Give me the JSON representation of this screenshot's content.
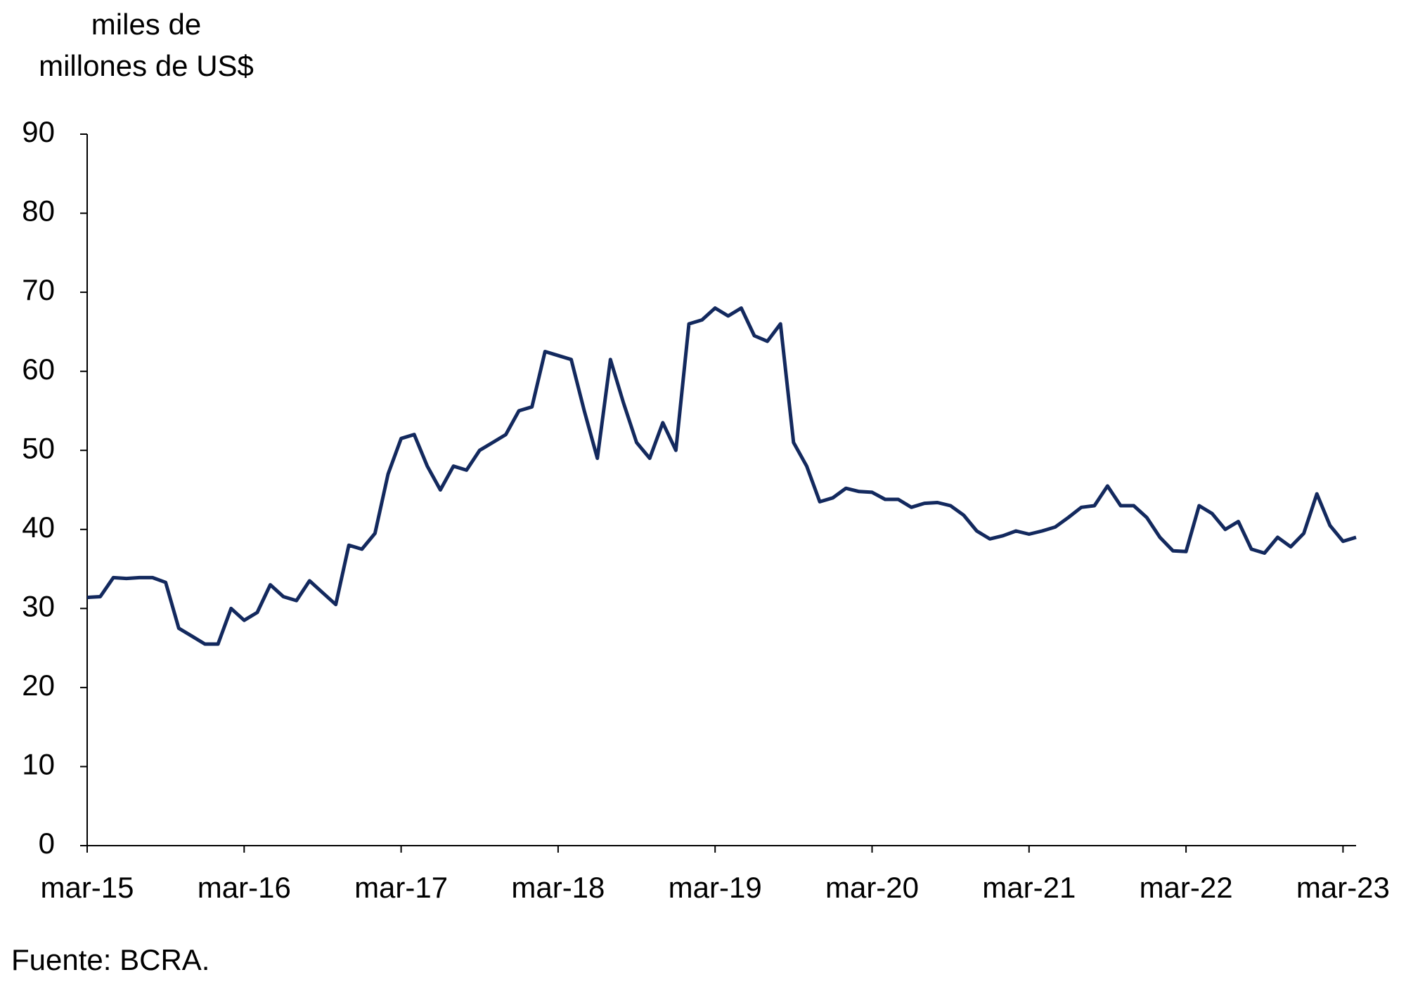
{
  "chart_data": {
    "type": "line",
    "ylabel": [
      "miles de",
      "millones de US$"
    ],
    "source": "Fuente: BCRA.",
    "categories": [
      "mar-15",
      null,
      null,
      null,
      null,
      null,
      null,
      null,
      null,
      null,
      null,
      null,
      "mar-16",
      null,
      null,
      null,
      null,
      null,
      null,
      null,
      null,
      null,
      null,
      null,
      "mar-17",
      null,
      null,
      null,
      null,
      null,
      null,
      null,
      null,
      null,
      null,
      null,
      "mar-18",
      null,
      null,
      null,
      null,
      null,
      null,
      null,
      null,
      null,
      null,
      null,
      "mar-19",
      null,
      null,
      null,
      null,
      null,
      null,
      null,
      null,
      null,
      null,
      null,
      "mar-20",
      null,
      null,
      null,
      null,
      null,
      null,
      null,
      null,
      null,
      null,
      null,
      "mar-21",
      null,
      null,
      null,
      null,
      null,
      null,
      null,
      null,
      null,
      null,
      null,
      "mar-22",
      null,
      null,
      null,
      null,
      null,
      null,
      null,
      null,
      null,
      null,
      null,
      "mar-23",
      null
    ],
    "series": [
      {
        "color": "#13295e",
        "values": [
          31.4,
          31.5,
          33.9,
          33.8,
          33.9,
          33.9,
          33.3,
          27.5,
          26.5,
          25.5,
          25.5,
          30,
          28.5,
          29.5,
          33,
          31.5,
          31,
          33.5,
          32,
          30.5,
          38,
          37.5,
          39.5,
          47,
          51.5,
          52,
          48,
          45,
          48,
          47.5,
          50,
          51,
          52,
          55,
          55.5,
          62.5,
          62,
          61.5,
          55,
          49,
          61.5,
          56,
          51,
          49,
          53.5,
          50,
          66,
          66.5,
          68,
          67,
          68,
          64.5,
          63.8,
          66,
          51,
          48,
          43.5,
          44,
          45.2,
          44.8,
          44.7,
          43.8,
          43.8,
          42.8,
          43.3,
          43.4,
          43,
          41.8,
          39.8,
          38.8,
          39.2,
          39.8,
          39.4,
          39.8,
          40.3,
          41.5,
          42.8,
          43,
          45.5,
          43,
          43,
          41.5,
          39,
          37.3,
          37.2,
          43,
          42,
          40,
          41,
          37.5,
          37,
          39,
          37.8,
          39.5,
          44.5,
          40.5,
          38.5,
          39
        ]
      }
    ],
    "ylim": [
      0,
      90
    ],
    "yticks": [
      0,
      10,
      20,
      30,
      40,
      50,
      60,
      70,
      80,
      90
    ]
  }
}
